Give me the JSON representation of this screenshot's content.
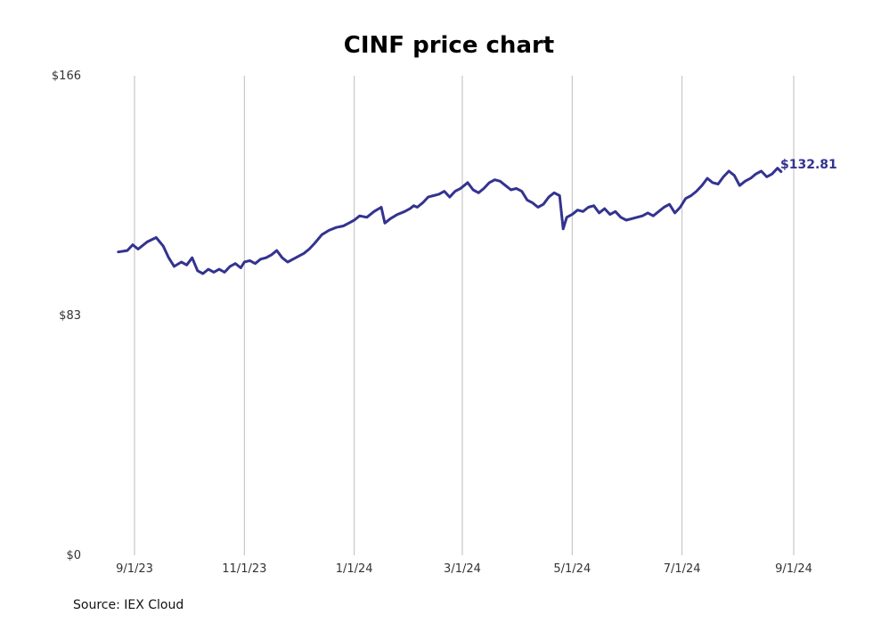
{
  "chart_data": {
    "type": "line",
    "title": "CINF price chart",
    "xlabel": "",
    "ylabel": "",
    "source": "Source: IEX Cloud",
    "y_ticks": [
      {
        "value": 0,
        "label": "$0"
      },
      {
        "value": 83,
        "label": "$83"
      },
      {
        "value": 166,
        "label": "$166"
      }
    ],
    "ylim": [
      0,
      166
    ],
    "x_ticks": [
      {
        "date": "2023-09-01",
        "label": "9/1/23"
      },
      {
        "date": "2023-11-01",
        "label": "11/1/23"
      },
      {
        "date": "2024-01-01",
        "label": "1/1/24"
      },
      {
        "date": "2024-03-01",
        "label": "3/1/24"
      },
      {
        "date": "2024-05-01",
        "label": "5/1/24"
      },
      {
        "date": "2024-07-01",
        "label": "7/1/24"
      },
      {
        "date": "2024-09-01",
        "label": "9/1/24"
      }
    ],
    "grid": "vertical",
    "last_value_label": "$132.81",
    "line_color": "#33338f",
    "series": [
      {
        "x": [
          "2023-08-23",
          "2023-08-28",
          "2023-08-31",
          "2023-09-03",
          "2023-09-08",
          "2023-09-13",
          "2023-09-17",
          "2023-09-20",
          "2023-09-23",
          "2023-09-27",
          "2023-09-30",
          "2023-10-03",
          "2023-10-06",
          "2023-10-09",
          "2023-10-12",
          "2023-10-15",
          "2023-10-18",
          "2023-10-21",
          "2023-10-24",
          "2023-10-27",
          "2023-10-30",
          "2023-11-01",
          "2023-11-04",
          "2023-11-07",
          "2023-11-10",
          "2023-11-13",
          "2023-11-16",
          "2023-11-19",
          "2023-11-22",
          "2023-11-25",
          "2023-11-28",
          "2023-12-01",
          "2023-12-04",
          "2023-12-07",
          "2023-12-10",
          "2023-12-14",
          "2023-12-18",
          "2023-12-22",
          "2023-12-26",
          "2023-12-29",
          "2024-01-01",
          "2024-01-04",
          "2024-01-08",
          "2024-01-12",
          "2024-01-16",
          "2024-01-18",
          "2024-01-21",
          "2024-01-25",
          "2024-01-29",
          "2024-02-01",
          "2024-02-03",
          "2024-02-05",
          "2024-02-08",
          "2024-02-11",
          "2024-02-14",
          "2024-02-17",
          "2024-02-20",
          "2024-02-23",
          "2024-02-26",
          "2024-02-29",
          "2024-03-04",
          "2024-03-07",
          "2024-03-10",
          "2024-03-13",
          "2024-03-16",
          "2024-03-19",
          "2024-03-22",
          "2024-03-25",
          "2024-03-28",
          "2024-03-31",
          "2024-04-03",
          "2024-04-06",
          "2024-04-09",
          "2024-04-12",
          "2024-04-15",
          "2024-04-18",
          "2024-04-21",
          "2024-04-24",
          "2024-04-26",
          "2024-04-28",
          "2024-05-01",
          "2024-05-04",
          "2024-05-07",
          "2024-05-10",
          "2024-05-13",
          "2024-05-16",
          "2024-05-19",
          "2024-05-22",
          "2024-05-25",
          "2024-05-28",
          "2024-05-31",
          "2024-06-03",
          "2024-06-06",
          "2024-06-09",
          "2024-06-12",
          "2024-06-15",
          "2024-06-18",
          "2024-06-21",
          "2024-06-24",
          "2024-06-27",
          "2024-06-30",
          "2024-07-03",
          "2024-07-06",
          "2024-07-09",
          "2024-07-12",
          "2024-07-15",
          "2024-07-18",
          "2024-07-21",
          "2024-07-24",
          "2024-07-27",
          "2024-07-30",
          "2024-08-02",
          "2024-08-05",
          "2024-08-08",
          "2024-08-11",
          "2024-08-14",
          "2024-08-17",
          "2024-08-20",
          "2024-08-23",
          "2024-08-25"
        ],
        "values": [
          105.0,
          105.5,
          107.5,
          106.0,
          108.5,
          110.0,
          107.0,
          103.0,
          100.0,
          101.5,
          100.5,
          103.0,
          98.5,
          97.5,
          99.0,
          98.0,
          99.0,
          98.0,
          100.0,
          101.0,
          99.5,
          101.5,
          102.0,
          101.0,
          102.5,
          103.0,
          104.0,
          105.5,
          103.0,
          101.5,
          102.5,
          103.5,
          104.5,
          106.0,
          108.0,
          111.0,
          112.5,
          113.5,
          114.0,
          115.0,
          116.0,
          117.5,
          117.0,
          119.0,
          120.5,
          115.0,
          116.5,
          118.0,
          119.0,
          120.0,
          121.0,
          120.5,
          122.0,
          124.0,
          124.5,
          125.0,
          126.0,
          124.0,
          126.0,
          127.0,
          129.0,
          126.5,
          125.5,
          127.0,
          129.0,
          130.0,
          129.5,
          128.0,
          126.5,
          127.0,
          126.0,
          123.0,
          122.0,
          120.5,
          121.5,
          124.0,
          125.5,
          124.5,
          113.0,
          117.0,
          118.0,
          119.5,
          119.0,
          120.5,
          121.0,
          118.5,
          120.0,
          118.0,
          119.0,
          117.0,
          116.0,
          116.5,
          117.0,
          117.5,
          118.5,
          117.5,
          119.0,
          120.5,
          121.5,
          118.5,
          120.5,
          123.5,
          124.5,
          126.0,
          128.0,
          130.5,
          129.0,
          128.5,
          131.0,
          133.0,
          131.5,
          128.0,
          129.5,
          130.5,
          132.0,
          133.0,
          131.0,
          132.0,
          134.0,
          132.81
        ]
      }
    ]
  }
}
